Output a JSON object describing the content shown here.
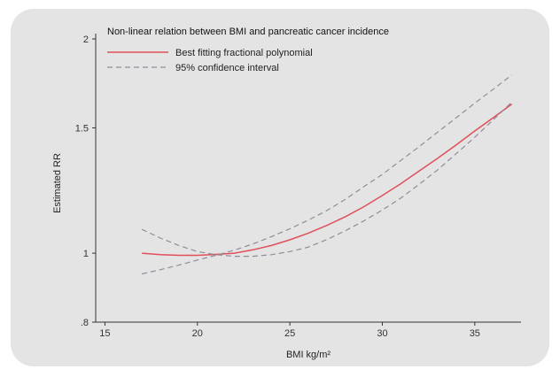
{
  "chart_data": {
    "type": "line",
    "title": "Non-linear relation between BMI and pancreatic cancer incidence",
    "xlabel": "BMI kg/m²",
    "ylabel": "Estimated RR",
    "y_scale": "log",
    "xlim": [
      14.5,
      37.5
    ],
    "ylim": [
      0.8,
      2
    ],
    "x_ticks": [
      15,
      20,
      25,
      30,
      35
    ],
    "x_tick_labels": [
      "15",
      "20",
      "25",
      "30",
      "35"
    ],
    "y_ticks": [
      0.8,
      1,
      1.5,
      2
    ],
    "y_tick_labels": [
      ".8",
      "1",
      "1.5",
      "2"
    ],
    "grid": false,
    "legend_position": "top-left",
    "series": [
      {
        "name": "Best fitting fractional polynomial",
        "style": "solid",
        "color": "#e0505a",
        "x": [
          17,
          18,
          19,
          20,
          21,
          22,
          23,
          24,
          25,
          26,
          27,
          28,
          29,
          30,
          31,
          32,
          33,
          34,
          35,
          36,
          37
        ],
        "values": [
          1.0,
          0.995,
          0.993,
          0.993,
          0.996,
          1.0,
          1.011,
          1.025,
          1.044,
          1.067,
          1.094,
          1.125,
          1.162,
          1.205,
          1.252,
          1.305,
          1.36,
          1.42,
          1.485,
          1.55,
          1.62
        ]
      },
      {
        "name": "95% confidence interval",
        "style": "dashed",
        "color": "#8e8e9a",
        "x": [
          17,
          18,
          19,
          20,
          21,
          22,
          23,
          24,
          25,
          26,
          27,
          28,
          29,
          30,
          31,
          32,
          33,
          34,
          35,
          36,
          37
        ],
        "values": [
          1.08,
          1.05,
          1.025,
          1.005,
          0.995,
          0.99,
          0.99,
          0.995,
          1.005,
          1.02,
          1.045,
          1.075,
          1.11,
          1.15,
          1.195,
          1.25,
          1.31,
          1.38,
          1.455,
          1.54,
          1.63
        ]
      },
      {
        "name": "",
        "style": "dashed",
        "color": "#8e8e9a",
        "x": [
          17,
          18,
          19,
          20,
          21,
          22,
          23,
          24,
          25,
          26,
          27,
          28,
          29,
          30,
          31,
          32,
          33,
          34,
          35,
          36,
          37
        ],
        "values": [
          0.935,
          0.948,
          0.962,
          0.978,
          0.993,
          1.01,
          1.03,
          1.055,
          1.082,
          1.113,
          1.148,
          1.19,
          1.24,
          1.29,
          1.35,
          1.412,
          1.48,
          1.55,
          1.625,
          1.7,
          1.78
        ]
      }
    ]
  }
}
